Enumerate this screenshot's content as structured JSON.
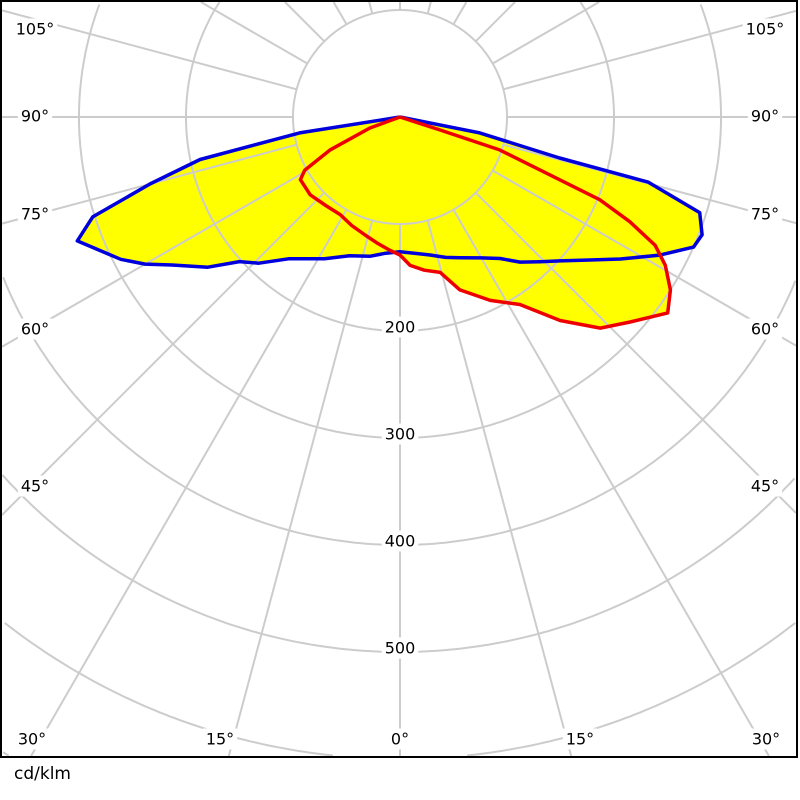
{
  "chart_data": {
    "type": "polar",
    "unit_label": "cd/klm",
    "angle_convention": "gamma from nadir, negative = left half",
    "radial_ticks": [
      100,
      200,
      300,
      400,
      500,
      600,
      700
    ],
    "radial_tick_labels": [
      "200",
      "300",
      "400",
      "500"
    ],
    "radial_tick_label_values": [
      200,
      300,
      400,
      500
    ],
    "angle_step": 15,
    "angle_labels_left": [
      "105°",
      "90°",
      "75°",
      "60°",
      "45°"
    ],
    "angle_labels_right": [
      "105°",
      "90°",
      "75°",
      "60°",
      "45°"
    ],
    "angle_labels_bottom": [
      "30°",
      "15°",
      "0°",
      "15°",
      "30°"
    ],
    "grid": true,
    "fill_color": "#ffff00",
    "series": [
      {
        "color": "#0000dd",
        "points": [
          [
            -90,
            0
          ],
          [
            -81,
            95
          ],
          [
            -78,
            191
          ],
          [
            -75,
            242
          ],
          [
            -72,
            302
          ],
          [
            -69,
            323
          ],
          [
            -63,
            293
          ],
          [
            -60,
            275
          ],
          [
            -57,
            254
          ],
          [
            -52,
            228
          ],
          [
            -48,
            202
          ],
          [
            -44,
            190
          ],
          [
            -38,
            168
          ],
          [
            -33,
            158
          ],
          [
            -28,
            150
          ],
          [
            -20,
            138
          ],
          [
            -12,
            133
          ],
          [
            -6,
            128
          ],
          [
            0,
            126
          ],
          [
            6,
            128
          ],
          [
            12.3,
            132
          ],
          [
            18,
            138
          ],
          [
            23.1,
            143
          ],
          [
            30,
            152
          ],
          [
            35.3,
            162
          ],
          [
            39.6,
            176
          ],
          [
            44,
            188
          ],
          [
            48,
            201
          ],
          [
            53,
            222
          ],
          [
            57.2,
            245
          ],
          [
            62,
            275
          ],
          [
            66.1,
            300
          ],
          [
            68.7,
            303
          ],
          [
            72.3,
            294
          ],
          [
            75.3,
            240
          ],
          [
            75.6,
            154
          ],
          [
            78.7,
            76
          ],
          [
            90,
            0
          ]
        ]
      },
      {
        "color": "#ee0000",
        "points": [
          [
            90,
            0
          ],
          [
            -69.9,
            30
          ],
          [
            -64.8,
            72
          ],
          [
            -60.8,
            102
          ],
          [
            -57.8,
            110
          ],
          [
            -49.1,
            111
          ],
          [
            -40,
            108
          ],
          [
            -31.5,
            107
          ],
          [
            -24,
            111
          ],
          [
            -16.5,
            115
          ],
          [
            -10,
            120
          ],
          [
            -4.3,
            125
          ],
          [
            0,
            129
          ],
          [
            3.9,
            139
          ],
          [
            9,
            145
          ],
          [
            14.5,
            150
          ],
          [
            19.1,
            171
          ],
          [
            26.2,
            191
          ],
          [
            32.6,
            208
          ],
          [
            38.2,
            242
          ],
          [
            43.5,
            272
          ],
          [
            48.3,
            288
          ],
          [
            53.8,
            310
          ],
          [
            57.4,
            300
          ],
          [
            60.8,
            284
          ],
          [
            63.3,
            267
          ],
          [
            65.5,
            236
          ],
          [
            67.5,
            202
          ],
          [
            71.7,
            98
          ],
          [
            72,
            39
          ],
          [
            90,
            0
          ]
        ]
      }
    ]
  }
}
